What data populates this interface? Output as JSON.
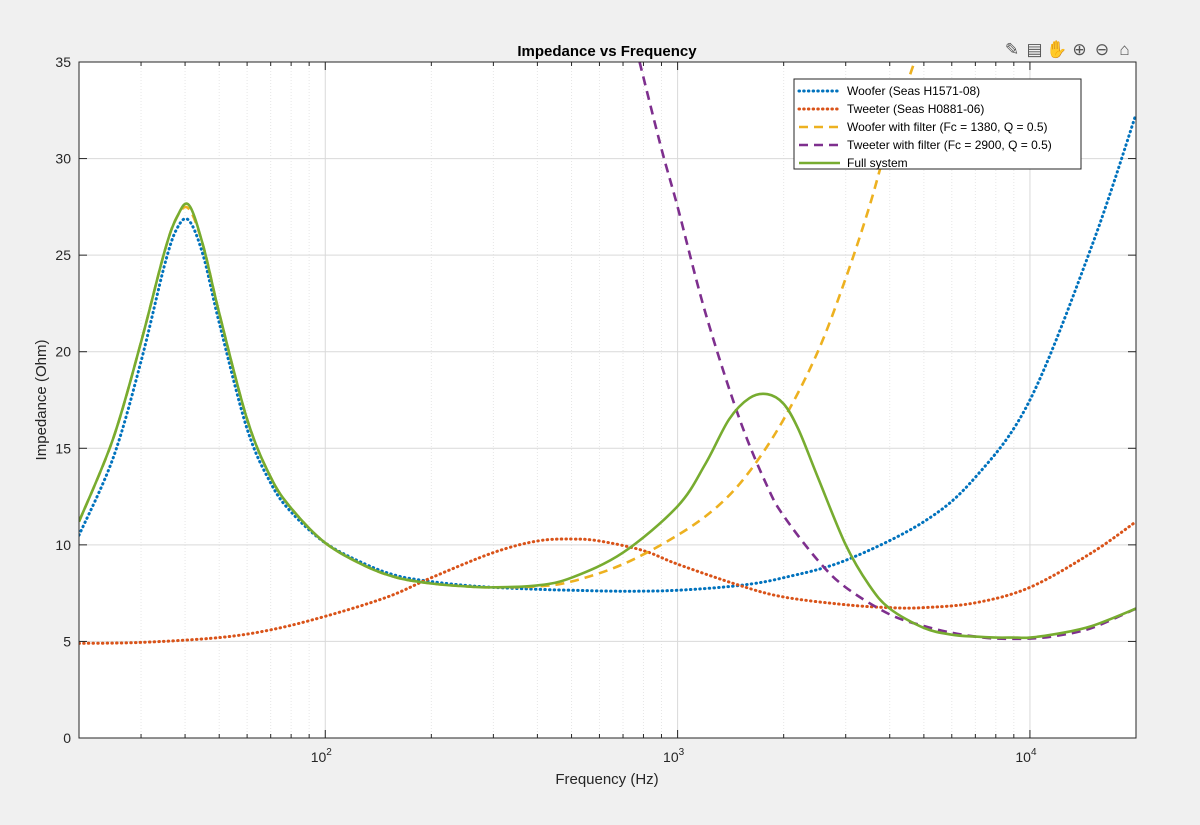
{
  "chart_data": {
    "type": "line",
    "title": "Impedance vs Frequency",
    "xlabel": "Frequency (Hz)",
    "ylabel": "Impedance (Ohm)",
    "xscale": "log",
    "xlim": [
      20,
      20000
    ],
    "ylim": [
      0,
      35
    ],
    "yticks": [
      "0",
      "5",
      "10",
      "15",
      "20",
      "25",
      "30",
      "35"
    ],
    "xticks": [
      {
        "base": "10",
        "exp": "2",
        "value": 100
      },
      {
        "base": "10",
        "exp": "3",
        "value": 1000
      },
      {
        "base": "10",
        "exp": "4",
        "value": 10000
      }
    ],
    "grid": true,
    "legend_position": "top-right",
    "series": [
      {
        "name": "Woofer (Seas H1571-08)",
        "color": "#0072BD",
        "style": "dotted",
        "x": [
          20,
          25,
          30,
          35,
          38,
          41,
          45,
          50,
          60,
          70,
          80,
          100,
          130,
          160,
          200,
          250,
          300,
          400,
          500,
          700,
          1000,
          1500,
          2000,
          3000,
          5000,
          7000,
          10000,
          15000,
          20000
        ],
        "y": [
          10.5,
          14.5,
          19.5,
          24.5,
          26.4,
          26.8,
          25.0,
          21.5,
          16.0,
          13.2,
          11.7,
          10.1,
          9.0,
          8.4,
          8.1,
          7.9,
          7.8,
          7.7,
          7.65,
          7.6,
          7.65,
          7.9,
          8.3,
          9.2,
          11.2,
          13.5,
          17.5,
          25.5,
          32.3
        ]
      },
      {
        "name": "Tweeter (Seas H0881-06)",
        "color": "#D95319",
        "style": "dotted",
        "x": [
          20,
          30,
          50,
          70,
          100,
          150,
          200,
          300,
          400,
          500,
          600,
          800,
          1000,
          1500,
          2000,
          3000,
          4000,
          5000,
          7000,
          10000,
          15000,
          20000
        ],
        "y": [
          4.9,
          4.95,
          5.2,
          5.6,
          6.3,
          7.3,
          8.3,
          9.6,
          10.2,
          10.3,
          10.2,
          9.7,
          9.0,
          7.9,
          7.3,
          6.9,
          6.75,
          6.75,
          7.0,
          7.8,
          9.6,
          11.2
        ]
      },
      {
        "name": "Woofer with filter (Fc = 1380, Q = 0.5)",
        "color": "#EDB120",
        "style": "dashed",
        "x": [
          20,
          25,
          30,
          35,
          38,
          41,
          45,
          50,
          60,
          70,
          80,
          100,
          130,
          160,
          200,
          250,
          300,
          400,
          500,
          700,
          1000,
          1300,
          1600,
          2000,
          2500,
          3000,
          3500,
          4000,
          4700
        ],
        "y": [
          11.2,
          15.5,
          20.5,
          25.2,
          27.0,
          27.4,
          25.5,
          22.0,
          16.5,
          13.5,
          11.9,
          10.1,
          8.9,
          8.3,
          8.0,
          7.85,
          7.8,
          7.85,
          8.1,
          9.0,
          10.5,
          12.0,
          13.8,
          16.5,
          20.0,
          23.8,
          27.5,
          31.2,
          35
        ]
      },
      {
        "name": "Tweeter with filter (Fc = 2900, Q = 0.5)",
        "color": "#7E2F8E",
        "style": "dashed",
        "x": [
          780,
          900,
          1000,
          1200,
          1500,
          1800,
          2000,
          2500,
          3000,
          4000,
          5000,
          6000,
          7000,
          8000,
          10000,
          12000,
          15000,
          20000
        ],
        "y": [
          35,
          30.5,
          27.5,
          22.0,
          16.5,
          13.0,
          11.5,
          9.2,
          7.8,
          6.4,
          5.8,
          5.45,
          5.25,
          5.15,
          5.15,
          5.3,
          5.7,
          6.7
        ]
      },
      {
        "name": "Full system",
        "color": "#77AC30",
        "style": "solid",
        "x": [
          20,
          25,
          30,
          35,
          38,
          41,
          45,
          50,
          60,
          70,
          80,
          100,
          130,
          160,
          200,
          250,
          300,
          400,
          500,
          700,
          1000,
          1200,
          1400,
          1600,
          1800,
          2000,
          2200,
          2500,
          3000,
          3500,
          4000,
          5000,
          6000,
          7000,
          8000,
          9000,
          10000,
          12000,
          15000,
          20000
        ],
        "y": [
          11.2,
          15.5,
          20.5,
          25.2,
          27.0,
          27.6,
          25.5,
          22.0,
          16.5,
          13.5,
          11.9,
          10.1,
          8.9,
          8.3,
          8.0,
          7.85,
          7.8,
          7.9,
          8.3,
          9.6,
          12.0,
          14.2,
          16.5,
          17.6,
          17.8,
          17.3,
          16.0,
          13.5,
          10.0,
          7.9,
          6.7,
          5.7,
          5.35,
          5.25,
          5.2,
          5.2,
          5.2,
          5.4,
          5.8,
          6.7
        ]
      }
    ]
  },
  "toolbar": {
    "buttons": [
      {
        "name": "brush-icon",
        "glyph": "✎"
      },
      {
        "name": "data-tips-icon",
        "glyph": "▤"
      },
      {
        "name": "pan-icon",
        "glyph": "✋"
      },
      {
        "name": "zoom-in-icon",
        "glyph": "⊕"
      },
      {
        "name": "zoom-out-icon",
        "glyph": "⊖"
      },
      {
        "name": "home-icon",
        "glyph": "⌂"
      }
    ]
  }
}
